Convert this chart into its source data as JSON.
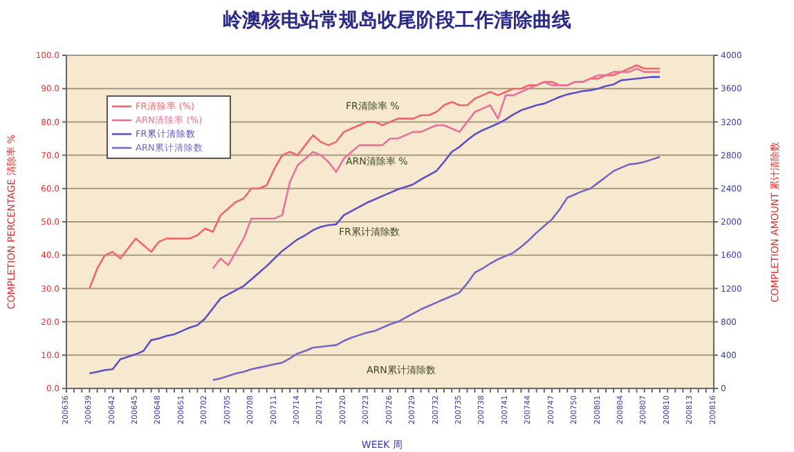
{
  "chart_data": {
    "type": "line",
    "title": "岭澳核电站常规岛收尾阶段工作清除曲线",
    "xlabel": "WEEK 周",
    "ylabel": "COMPLETION PERCENTAGE 清除率 %",
    "y2label": "COMPLETION AMOUNT 累计清除数",
    "categories": [
      "200636",
      null,
      null,
      "200639",
      null,
      null,
      "200642",
      null,
      null,
      "200645",
      null,
      null,
      "200648",
      null,
      null,
      "200651",
      null,
      null,
      "200702",
      null,
      null,
      "200705",
      null,
      null,
      "200708",
      null,
      null,
      "200711",
      null,
      null,
      "200714",
      null,
      null,
      "200717",
      null,
      null,
      "200720",
      null,
      null,
      "200723",
      null,
      null,
      "200726",
      null,
      null,
      "200729",
      null,
      null,
      "200732",
      null,
      null,
      "200735",
      null,
      null,
      "200738",
      null,
      null,
      "200741",
      null,
      null,
      "200744",
      null,
      null,
      "200747",
      null,
      null,
      "200750",
      null,
      null,
      "200801",
      null,
      null,
      "200804",
      null,
      null,
      "200807",
      null,
      null,
      "200810",
      null,
      null,
      "200813",
      null,
      null,
      "200816"
    ],
    "series": [
      {
        "name": "FR清除率 (%)",
        "color": "#ee6666",
        "values": [
          null,
          null,
          null,
          30,
          36,
          40,
          41,
          39,
          42,
          45,
          43,
          41,
          44,
          45,
          45,
          45,
          45,
          46,
          48,
          47,
          52,
          54,
          56,
          57,
          60,
          60,
          61,
          66,
          70,
          71,
          70,
          73,
          76,
          74,
          73,
          74,
          77,
          78,
          79,
          80,
          80,
          79,
          80,
          81,
          81,
          81,
          82,
          82,
          83,
          85,
          86,
          85,
          85,
          87,
          88,
          89,
          88,
          89,
          90,
          90,
          91,
          91,
          92,
          92,
          91,
          91,
          92,
          92,
          93,
          93,
          94,
          94,
          95,
          96,
          97,
          96,
          96,
          96,
          null,
          null,
          null,
          null,
          null,
          null,
          null
        ]
      },
      {
        "name": "ARN清除率 (%)",
        "color": "#e8709a",
        "values": [
          null,
          null,
          null,
          null,
          null,
          null,
          null,
          null,
          null,
          null,
          null,
          null,
          null,
          null,
          null,
          null,
          null,
          null,
          null,
          36,
          39,
          37,
          41,
          45,
          51,
          51,
          51,
          51,
          52,
          62,
          67,
          69,
          71,
          70,
          68,
          65,
          69,
          71,
          73,
          73,
          73,
          73,
          75,
          75,
          76,
          77,
          77,
          78,
          79,
          79,
          78,
          77,
          80,
          83,
          84,
          85,
          81,
          88,
          88,
          89,
          90,
          91,
          92,
          91,
          91,
          91,
          92,
          92,
          93,
          94,
          94,
          95,
          95,
          95,
          96,
          95,
          95,
          95,
          null,
          null,
          null,
          null,
          null,
          null,
          null
        ]
      },
      {
        "name": "FR累计清除数",
        "color": "#5a4fc8",
        "axis": "y2",
        "values": [
          null,
          null,
          null,
          180,
          200,
          220,
          230,
          350,
          380,
          410,
          450,
          580,
          600,
          630,
          650,
          690,
          730,
          760,
          840,
          960,
          1080,
          1130,
          1180,
          1230,
          1310,
          1390,
          1470,
          1560,
          1650,
          1720,
          1790,
          1840,
          1900,
          1940,
          1960,
          1970,
          2080,
          2130,
          2180,
          2230,
          2270,
          2310,
          2350,
          2390,
          2420,
          2450,
          2510,
          2560,
          2610,
          2720,
          2840,
          2900,
          2980,
          3050,
          3100,
          3140,
          3180,
          3230,
          3290,
          3340,
          3370,
          3400,
          3420,
          3460,
          3500,
          3530,
          3550,
          3570,
          3580,
          3600,
          3630,
          3650,
          3700,
          3710,
          3720,
          3730,
          3740,
          3740,
          null,
          null,
          null,
          null,
          null,
          null,
          null
        ]
      },
      {
        "name": "ARN累计清除数",
        "color": "#7466c4",
        "axis": "y2",
        "values": [
          null,
          null,
          null,
          null,
          null,
          null,
          null,
          null,
          null,
          null,
          null,
          null,
          null,
          null,
          null,
          null,
          null,
          null,
          null,
          100,
          120,
          150,
          180,
          200,
          230,
          250,
          270,
          290,
          310,
          360,
          420,
          450,
          490,
          500,
          510,
          520,
          570,
          610,
          640,
          670,
          690,
          730,
          770,
          800,
          850,
          900,
          950,
          990,
          1030,
          1070,
          1110,
          1150,
          1260,
          1390,
          1440,
          1500,
          1550,
          1590,
          1630,
          1700,
          1780,
          1870,
          1950,
          2030,
          2150,
          2290,
          2330,
          2370,
          2400,
          2470,
          2540,
          2610,
          2650,
          2690,
          2700,
          2720,
          2750,
          2780,
          null,
          null,
          null,
          null,
          null,
          null,
          null
        ]
      }
    ],
    "ylim": [
      0,
      100
    ],
    "yticks": [
      {
        "value": 0,
        "label": "0.0"
      },
      {
        "value": 10,
        "label": "10.0"
      },
      {
        "value": 20,
        "label": "20.0"
      },
      {
        "value": 30,
        "label": "30.0"
      },
      {
        "value": 40,
        "label": "40.0"
      },
      {
        "value": 50,
        "label": "50.0"
      },
      {
        "value": 60,
        "label": "60.0"
      },
      {
        "value": 70,
        "label": "70.0"
      },
      {
        "value": 80,
        "label": "80.0"
      },
      {
        "value": 90,
        "label": "90.0"
      },
      {
        "value": 100,
        "label": "100.0"
      }
    ],
    "y2lim": [
      0,
      4000
    ],
    "y2ticks": [
      0,
      400,
      800,
      1200,
      1600,
      2000,
      2400,
      2800,
      3200,
      3600,
      4000
    ],
    "annotations": [
      "FR清除率 %",
      "ARN清除率 %",
      "FR累计清除数",
      "ARN累计清除数"
    ],
    "grid": "y",
    "legend": "top left",
    "marker": "none",
    "line_style": "solid"
  }
}
